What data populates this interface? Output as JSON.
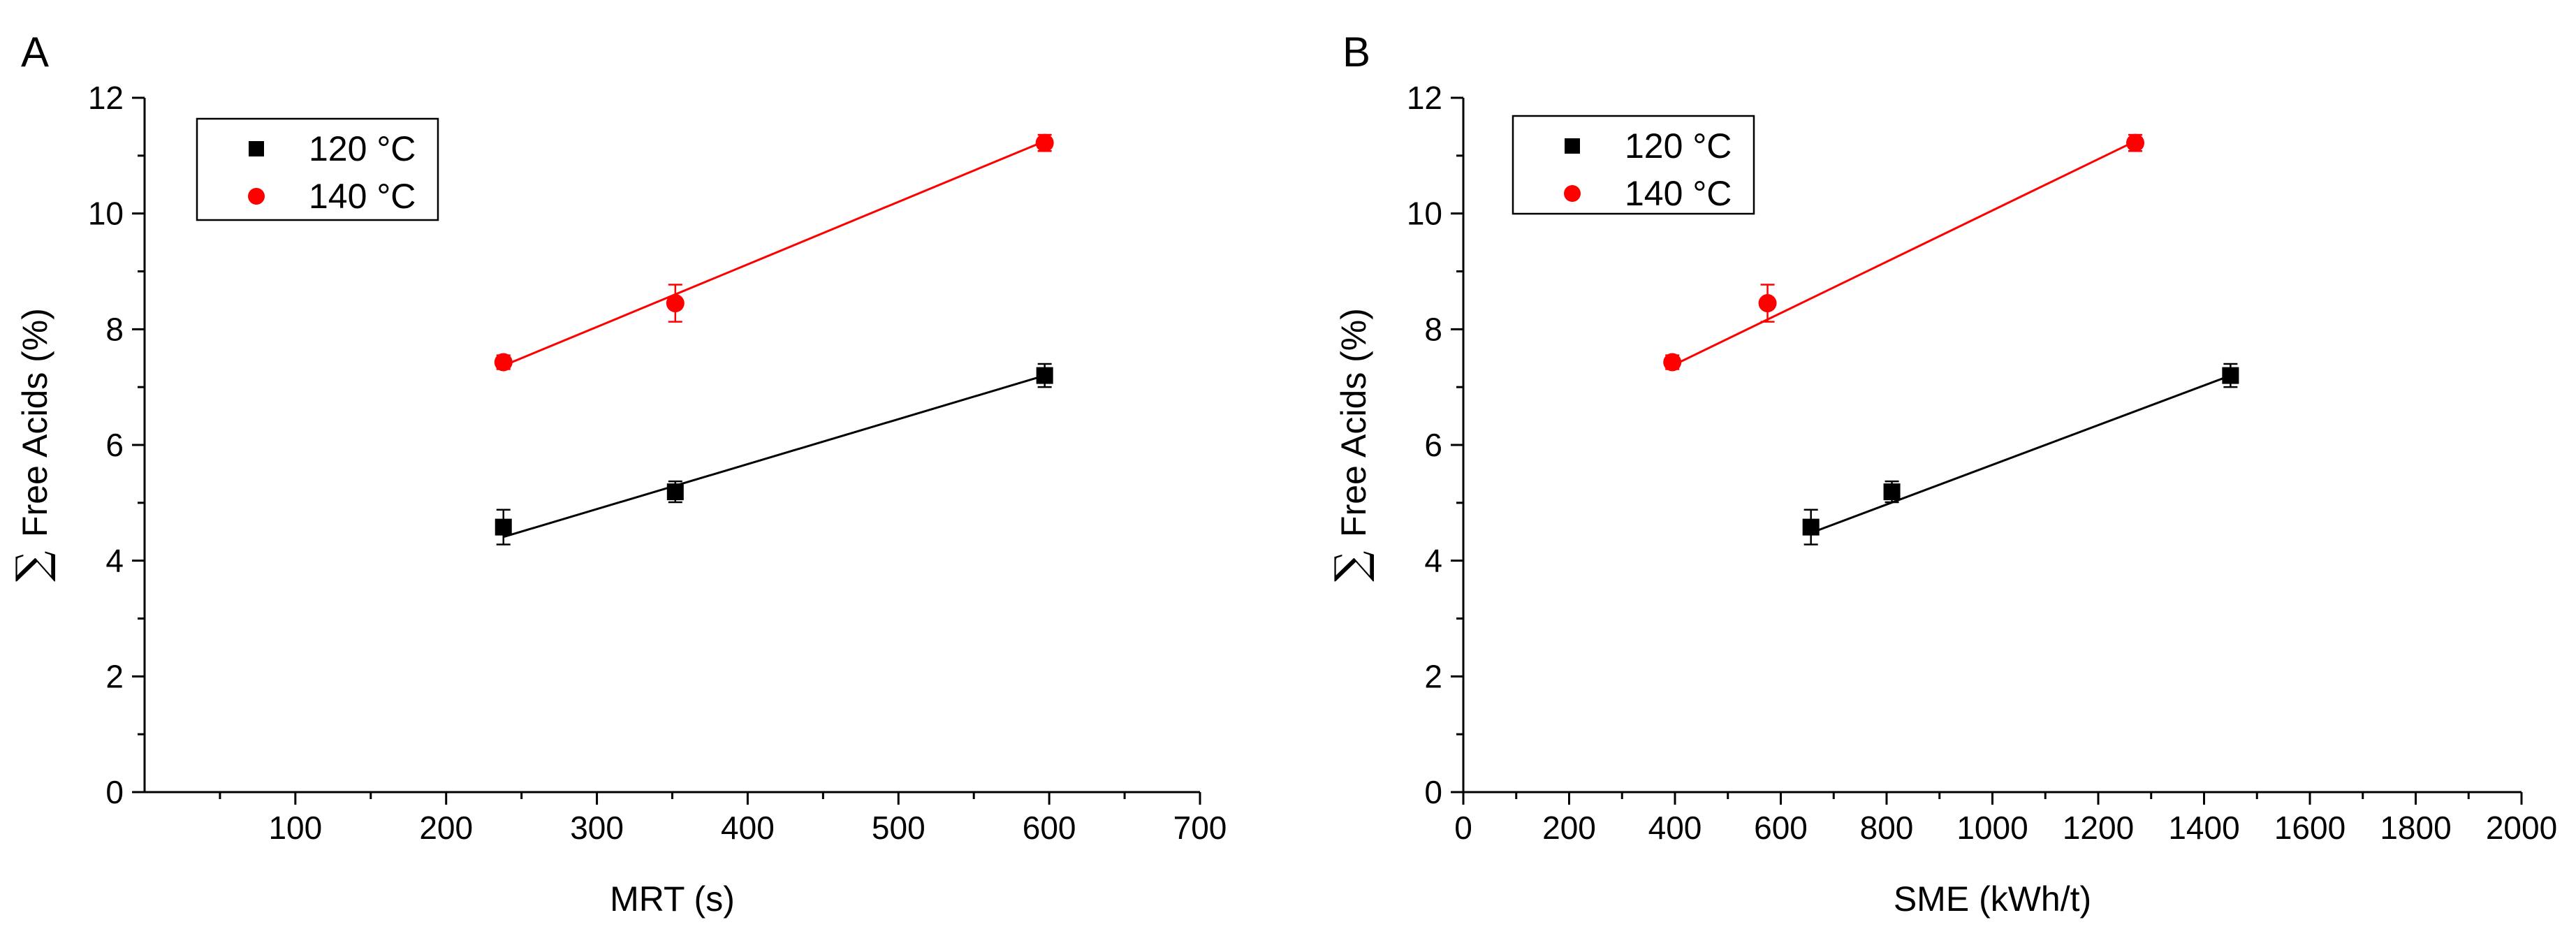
{
  "figure": {
    "colors": {
      "series_120": "#000000",
      "series_140": "#ff0000",
      "axes": "#000000",
      "background": "#ffffff"
    }
  },
  "chart_data": [
    {
      "panel": "A",
      "type": "scatter",
      "xlabel": "MRT (s)",
      "ylabel_symbol": "∑",
      "ylabel": "Free Acids (%)",
      "xlim": [
        0,
        700
      ],
      "ylim": [
        0,
        12
      ],
      "xticks": [
        100,
        200,
        300,
        400,
        500,
        600,
        700
      ],
      "xtick_labels": [
        "100",
        "200",
        "300",
        "400",
        "500",
        "600",
        "700"
      ],
      "yticks": [
        0,
        2,
        4,
        6,
        8,
        10,
        12
      ],
      "ytick_labels": [
        "0",
        "2",
        "4",
        "6",
        "8",
        "10",
        "12"
      ],
      "legend_position": "top-left",
      "grid": false,
      "series": [
        {
          "name": "120 °C",
          "marker": "square",
          "color": "#000000",
          "x": [
            238,
            352,
            597
          ],
          "y": [
            4.58,
            5.19,
            7.2
          ],
          "err": [
            0.3,
            0.18,
            0.2
          ],
          "fit": {
            "x": [
              238,
              597
            ],
            "y": [
              4.41,
              7.2
            ]
          }
        },
        {
          "name": "140 °C",
          "marker": "circle",
          "color": "#ff0000",
          "x": [
            238,
            352,
            597
          ],
          "y": [
            7.43,
            8.45,
            11.22
          ],
          "err": [
            0.12,
            0.32,
            0.14
          ],
          "fit": {
            "x": [
              238,
              597
            ],
            "y": [
              7.37,
              11.25
            ]
          }
        }
      ]
    },
    {
      "panel": "B",
      "type": "scatter",
      "xlabel": "SME (kWh/t)",
      "ylabel_symbol": "∑",
      "ylabel": "Free Acids (%)",
      "xlim": [
        0,
        2000
      ],
      "ylim": [
        0,
        12
      ],
      "xticks": [
        0,
        200,
        400,
        600,
        800,
        1000,
        1200,
        1400,
        1600,
        1800,
        2000
      ],
      "xtick_labels": [
        "0",
        "200",
        "400",
        "600",
        "800",
        "1000",
        "1200",
        "1400",
        "1600",
        "1800",
        "2000"
      ],
      "yticks": [
        0,
        2,
        4,
        6,
        8,
        10,
        12
      ],
      "ytick_labels": [
        "0",
        "2",
        "4",
        "6",
        "8",
        "10",
        "12"
      ],
      "legend_position": "top-left",
      "grid": false,
      "series": [
        {
          "name": "120 °C",
          "marker": "square",
          "color": "#000000",
          "x": [
            657,
            810,
            1450
          ],
          "y": [
            4.58,
            5.19,
            7.2
          ],
          "err": [
            0.3,
            0.18,
            0.2
          ],
          "fit": {
            "x": [
              657,
              1450
            ],
            "y": [
              4.48,
              7.2
            ]
          }
        },
        {
          "name": "140 °C",
          "marker": "circle",
          "color": "#ff0000",
          "x": [
            395,
            575,
            1270
          ],
          "y": [
            7.43,
            8.45,
            11.22
          ],
          "err": [
            0.12,
            0.32,
            0.14
          ],
          "fit": {
            "x": [
              395,
              1270
            ],
            "y": [
              7.37,
              11.25
            ]
          }
        }
      ]
    }
  ]
}
